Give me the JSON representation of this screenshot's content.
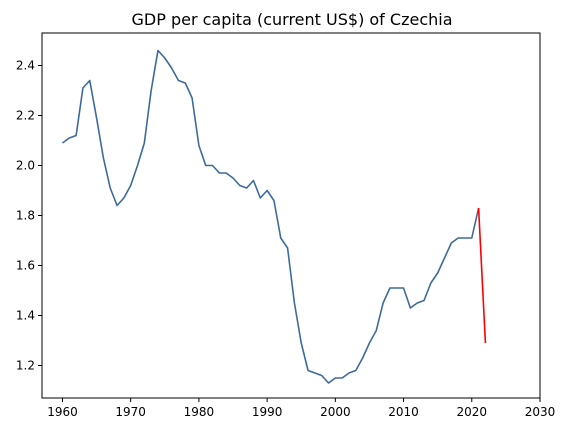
{
  "chart_data": {
    "type": "line",
    "title": "GDP per capita (current US$) of Czechia",
    "xlabel": "",
    "ylabel": "",
    "xlim": [
      1957,
      2030
    ],
    "ylim": [
      1.07,
      2.53
    ],
    "xticks": [
      1960,
      1970,
      1980,
      1990,
      2000,
      2010,
      2020,
      2030
    ],
    "yticks": [
      1.2,
      1.4,
      1.6,
      1.8,
      2.0,
      2.2,
      2.4
    ],
    "grid": false,
    "series": [
      {
        "color": "#3d6a9e",
        "x": [
          1960,
          1961,
          1962,
          1963,
          1964,
          1965,
          1966,
          1967,
          1968,
          1969,
          1970,
          1971,
          1972,
          1973,
          1974,
          1975,
          1976,
          1977,
          1978,
          1979,
          1980,
          1981,
          1982,
          1983,
          1984,
          1985,
          1986,
          1987,
          1988,
          1989,
          1990,
          1991,
          1992,
          1993,
          1994,
          1995,
          1996,
          1997,
          1998,
          1999,
          2000,
          2001,
          2002,
          2003,
          2004,
          2005,
          2006,
          2007,
          2008,
          2009,
          2010,
          2011,
          2012,
          2013,
          2014,
          2015,
          2016,
          2017,
          2018,
          2019,
          2020,
          2021
        ],
        "y": [
          2.09,
          2.11,
          2.12,
          2.31,
          2.34,
          2.19,
          2.03,
          1.91,
          1.84,
          1.87,
          1.92,
          2.0,
          2.09,
          2.3,
          2.46,
          2.43,
          2.39,
          2.34,
          2.33,
          2.27,
          2.08,
          2.0,
          2.0,
          1.97,
          1.97,
          1.95,
          1.92,
          1.91,
          1.94,
          1.87,
          1.9,
          1.86,
          1.71,
          1.67,
          1.45,
          1.29,
          1.18,
          1.17,
          1.16,
          1.13,
          1.15,
          1.15,
          1.17,
          1.18,
          1.23,
          1.29,
          1.34,
          1.45,
          1.51,
          1.51,
          1.51,
          1.43,
          1.45,
          1.46,
          1.53,
          1.57,
          1.63,
          1.69,
          1.71,
          1.71,
          1.71,
          1.83
        ]
      },
      {
        "color": "#ff0000",
        "x": [
          2021,
          2022
        ],
        "y": [
          1.83,
          1.29
        ]
      }
    ]
  }
}
